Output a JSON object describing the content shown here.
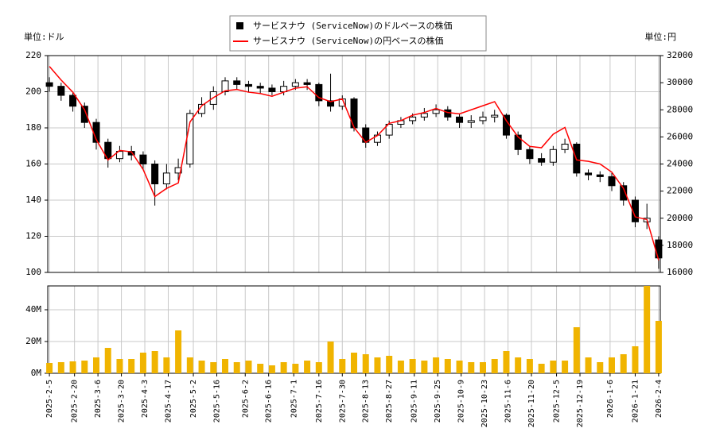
{
  "chart_data": {
    "type": "candlestick",
    "ylabel": "単位:ドル",
    "y2label": "単位:円",
    "x": [
      "2025-2-5",
      "2025-2-12",
      "2025-2-19",
      "2025-2-26",
      "2025-3-5",
      "2025-3-12",
      "2025-3-19",
      "2025-3-26",
      "2025-4-2",
      "2025-4-9",
      "2025-4-16",
      "2025-4-23",
      "2025-4-30",
      "2025-5-7",
      "2025-5-14",
      "2025-5-21",
      "2025-5-28",
      "2025-6-4",
      "2025-6-11",
      "2025-6-18",
      "2025-6-25",
      "2025-7-2",
      "2025-7-9",
      "2025-7-16",
      "2025-7-23",
      "2025-7-30",
      "2025-8-6",
      "2025-8-13",
      "2025-8-20",
      "2025-8-27",
      "2025-9-3",
      "2025-9-10",
      "2025-9-17",
      "2025-9-24",
      "2025-10-1",
      "2025-10-8",
      "2025-10-15",
      "2025-10-22",
      "2025-10-29",
      "2025-11-5",
      "2025-11-12",
      "2025-11-19",
      "2025-11-26",
      "2025-12-3",
      "2025-12-10",
      "2025-12-17",
      "2025-12-24",
      "2025-12-31",
      "2026-1-7",
      "2026-1-14",
      "2026-1-21",
      "2026-1-28",
      "2026-2-4"
    ],
    "xlim": [
      "2025-2-4",
      "2026-2-5"
    ],
    "xticks": [
      "2025-2-5",
      "2025-2-20",
      "2025-3-6",
      "2025-3-20",
      "2025-4-3",
      "2025-4-17",
      "2025-5-2",
      "2025-5-16",
      "2025-6-2",
      "2025-6-16",
      "2025-7-1",
      "2025-7-16",
      "2025-7-30",
      "2025-8-13",
      "2025-8-27",
      "2025-9-11",
      "2025-9-25",
      "2025-10-9",
      "2025-10-23",
      "2025-11-6",
      "2025-11-20",
      "2025-12-5",
      "2025-12-19",
      "2026-1-6",
      "2026-1-21",
      "2026-2-4"
    ],
    "ylim": [
      100,
      220
    ],
    "yticks": [
      100,
      120,
      140,
      160,
      180,
      200,
      220
    ],
    "y2lim": [
      16000,
      32000
    ],
    "y2ticks": [
      16000,
      18000,
      20000,
      22000,
      24000,
      26000,
      28000,
      30000,
      32000
    ],
    "grid": true,
    "series": [
      {
        "name": "サービスナウ (ServiceNow)のドルベースの株価",
        "color": "#000000",
        "open": [
          205,
          203,
          198,
          192,
          183,
          172,
          163,
          167,
          165,
          160,
          149,
          155,
          160,
          188,
          193,
          200,
          206,
          204,
          203,
          202,
          200,
          203,
          205,
          204,
          195,
          192,
          196,
          180,
          172,
          176,
          182,
          184,
          186,
          188,
          190,
          186,
          183,
          184,
          186,
          187,
          176,
          168,
          163,
          161,
          168,
          171,
          155,
          154,
          153,
          148,
          140,
          128,
          118
        ],
        "high": [
          208,
          205,
          200,
          194,
          185,
          174,
          170,
          170,
          167,
          162,
          160,
          163,
          190,
          197,
          203,
          208,
          208,
          206,
          205,
          204,
          206,
          207,
          207,
          205,
          210,
          198,
          197,
          182,
          178,
          184,
          186,
          188,
          191,
          193,
          192,
          188,
          187,
          189,
          190,
          188,
          178,
          170,
          166,
          170,
          174,
          172,
          157,
          156,
          155,
          150,
          142,
          138,
          120
        ],
        "low": [
          200,
          195,
          189,
          180,
          168,
          158,
          161,
          162,
          157,
          137,
          146,
          151,
          158,
          186,
          190,
          198,
          201,
          200,
          199,
          198,
          198,
          201,
          201,
          192,
          189,
          190,
          178,
          169,
          170,
          174,
          180,
          182,
          184,
          186,
          184,
          180,
          180,
          182,
          183,
          174,
          165,
          160,
          159,
          159,
          166,
          153,
          151,
          150,
          145,
          137,
          125,
          124,
          102
        ],
        "close": [
          203,
          198,
          192,
          183,
          172,
          163,
          167,
          165,
          160,
          149,
          155,
          158,
          188,
          193,
          200,
          206,
          204,
          203,
          202,
          200,
          203,
          205,
          204,
          195,
          192,
          196,
          180,
          172,
          176,
          182,
          184,
          186,
          188,
          190,
          186,
          183,
          184,
          186,
          187,
          176,
          168,
          163,
          161,
          168,
          171,
          155,
          154,
          153,
          148,
          140,
          128,
          130,
          108
        ]
      },
      {
        "name": "サービスナウ (ServiceNow)の円ベースの株価",
        "color": "#ff0000",
        "axis": "y2",
        "values": [
          31200,
          30200,
          29300,
          28000,
          25800,
          24300,
          25000,
          24900,
          23600,
          21600,
          22200,
          22600,
          27100,
          28300,
          28900,
          29400,
          29500,
          29300,
          29200,
          29000,
          29300,
          29600,
          29700,
          28900,
          28600,
          28800,
          26700,
          25600,
          26100,
          27000,
          27200,
          27600,
          27800,
          28100,
          27800,
          27700,
          28000,
          28300,
          28600,
          27200,
          26000,
          25300,
          25200,
          26200,
          26700,
          24300,
          24200,
          24000,
          23400,
          22200,
          20100,
          19900,
          16900
        ]
      }
    ],
    "volume": {
      "color": "#f0b400",
      "ylim": [
        0,
        55000000
      ],
      "yticks": [
        {
          "value": 0,
          "label": "0M"
        },
        {
          "value": 20000000,
          "label": "20M"
        },
        {
          "value": 40000000,
          "label": "40M"
        }
      ],
      "values": [
        6500000,
        7000000,
        7500000,
        8000000,
        10000000,
        16000000,
        9000000,
        9000000,
        13000000,
        14000000,
        10000000,
        27000000,
        10000000,
        8000000,
        7000000,
        9000000,
        7000000,
        8000000,
        6000000,
        5000000,
        7000000,
        6000000,
        8000000,
        7000000,
        20000000,
        9000000,
        13000000,
        12000000,
        10000000,
        11000000,
        8000000,
        9000000,
        8000000,
        10000000,
        9000000,
        8000000,
        7000000,
        7000000,
        9000000,
        14000000,
        10000000,
        9000000,
        6000000,
        8000000,
        8000000,
        29000000,
        10000000,
        7000000,
        10000000,
        12000000,
        17000000,
        55000000,
        33000000
      ]
    }
  }
}
